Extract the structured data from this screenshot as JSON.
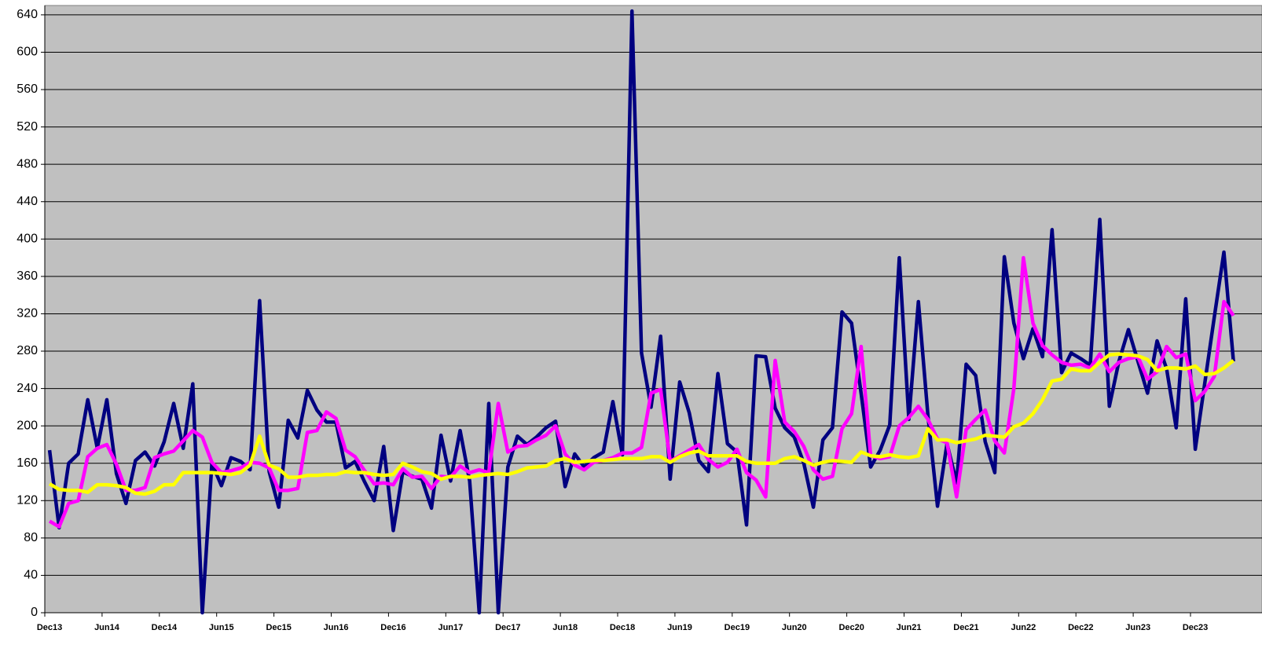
{
  "chart_data": {
    "type": "line",
    "categories": [
      "Dec13",
      null,
      null,
      null,
      null,
      null,
      "Jun14",
      null,
      null,
      null,
      null,
      null,
      "Dec14",
      null,
      null,
      null,
      null,
      null,
      "Jun15",
      null,
      null,
      null,
      null,
      null,
      "Dec15",
      null,
      null,
      null,
      null,
      null,
      "Jun16",
      null,
      null,
      null,
      null,
      null,
      "Dec16",
      null,
      null,
      null,
      null,
      null,
      "Jun17",
      null,
      null,
      null,
      null,
      null,
      "Dec17",
      null,
      null,
      null,
      null,
      null,
      "Jun18",
      null,
      null,
      null,
      null,
      null,
      "Dec18",
      null,
      null,
      null,
      null,
      null,
      "Jun19",
      null,
      null,
      null,
      null,
      null,
      "Dec19",
      null,
      null,
      null,
      null,
      null,
      "Jun20",
      null,
      null,
      null,
      null,
      null,
      "Dec20",
      null,
      null,
      null,
      null,
      null,
      "Jun21",
      null,
      null,
      null,
      null,
      null,
      "Dec21",
      null,
      null,
      null,
      null,
      null,
      "Jun22",
      null,
      null,
      null,
      null,
      null,
      "Dec22",
      null,
      null,
      null,
      null,
      null,
      "Jun23",
      null,
      null,
      null,
      null,
      null,
      "Dec23",
      null,
      null,
      null,
      null
    ],
    "series": [
      {
        "color": "#000080",
        "values": [
          174,
          91,
          160,
          170,
          228,
          176,
          228,
          149,
          117,
          163,
          172,
          157,
          183,
          224,
          176,
          245,
          0,
          160,
          136,
          166,
          162,
          153,
          334,
          151,
          113,
          206,
          187,
          238,
          217,
          204,
          204,
          155,
          162,
          140,
          120,
          178,
          88,
          151,
          146,
          143,
          112,
          190,
          141,
          195,
          141,
          0,
          224,
          0,
          156,
          189,
          180,
          188,
          198,
          205,
          135,
          170,
          156,
          166,
          172,
          226,
          169,
          644,
          278,
          220,
          296,
          143,
          247,
          214,
          163,
          151,
          256,
          181,
          172,
          94,
          275,
          274,
          219,
          198,
          188,
          160,
          113,
          185,
          198,
          322,
          310,
          235,
          156,
          174,
          201,
          380,
          207,
          333,
          211,
          114,
          181,
          139,
          266,
          254,
          183,
          150,
          381,
          310,
          272,
          304,
          274,
          410,
          257,
          278,
          272,
          265,
          421,
          221,
          269,
          303,
          269,
          235,
          291,
          261,
          198,
          336,
          175,
          246,
          317,
          386,
          269
        ]
      },
      {
        "color": "#ff00ff",
        "values": [
          98,
          92,
          117,
          120,
          167,
          176,
          180,
          159,
          131,
          131,
          134,
          166,
          170,
          173,
          184,
          195,
          188,
          161,
          150,
          152,
          155,
          161,
          160,
          155,
          131,
          131,
          133,
          193,
          195,
          215,
          208,
          174,
          167,
          152,
          138,
          139,
          137,
          154,
          145,
          146,
          133,
          146,
          145,
          157,
          150,
          153,
          150,
          224,
          172,
          178,
          179,
          185,
          190,
          200,
          170,
          158,
          153,
          161,
          163,
          166,
          171,
          171,
          177,
          235,
          239,
          162,
          168,
          174,
          180,
          164,
          156,
          161,
          175,
          150,
          142,
          124,
          270,
          204,
          194,
          178,
          153,
          143,
          146,
          197,
          213,
          285,
          168,
          165,
          167,
          200,
          209,
          221,
          207,
          186,
          182,
          124,
          196,
          207,
          217,
          184,
          171,
          240,
          380,
          310,
          286,
          276,
          268,
          265,
          266,
          262,
          277,
          258,
          268,
          272,
          274,
          250,
          258,
          285,
          273,
          277,
          227,
          237,
          253,
          333,
          318
        ]
      },
      {
        "color": "#ffff00",
        "values": [
          138,
          132,
          131,
          131,
          129,
          137,
          137,
          136,
          134,
          128,
          127,
          130,
          137,
          137,
          150,
          150,
          150,
          150,
          149,
          148,
          150,
          158,
          189,
          158,
          154,
          145,
          145,
          147,
          147,
          148,
          148,
          151,
          150,
          150,
          148,
          147,
          148,
          160,
          156,
          151,
          149,
          143,
          146,
          146,
          145,
          147,
          148,
          149,
          148,
          151,
          155,
          156,
          157,
          163,
          165,
          161,
          162,
          163,
          163,
          164,
          165,
          165,
          165,
          167,
          167,
          161,
          167,
          171,
          173,
          168,
          168,
          168,
          168,
          162,
          160,
          160,
          160,
          165,
          167,
          163,
          158,
          161,
          163,
          162,
          161,
          172,
          168,
          167,
          169,
          167,
          166,
          168,
          197,
          185,
          185,
          182,
          184,
          186,
          190,
          189,
          188,
          199,
          203,
          213,
          228,
          248,
          250,
          261,
          259,
          259,
          268,
          276,
          277,
          276,
          275,
          271,
          259,
          262,
          262,
          261,
          264,
          255,
          256,
          262,
          270
        ]
      }
    ],
    "ylim": [
      0,
      650
    ],
    "yticks": [
      0,
      40,
      80,
      120,
      160,
      200,
      240,
      280,
      320,
      360,
      400,
      440,
      480,
      520,
      560,
      600,
      640
    ],
    "grid": true,
    "background": "#c0c0c0"
  }
}
